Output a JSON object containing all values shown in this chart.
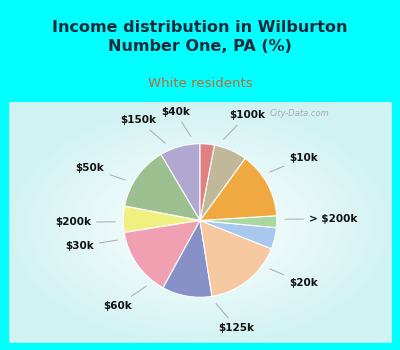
{
  "title": "Income distribution in Wilburton\nNumber One, PA (%)",
  "subtitle": "White residents",
  "bg_color": "#00FFFF",
  "chart_bg_color": "#d0ede0",
  "labels": [
    "$100k",
    "$10k",
    "> $200k",
    "$20k",
    "$125k",
    "$60k",
    "$30k",
    "$200k",
    "$50k",
    "$150k",
    "$40k"
  ],
  "sizes": [
    8.5,
    13.5,
    5.5,
    14.5,
    10.5,
    16.5,
    4.5,
    2.5,
    14.0,
    7.0,
    3.0
  ],
  "colors": [
    "#b0a8d0",
    "#9dc090",
    "#f0f080",
    "#f0a0b0",
    "#8890c8",
    "#f5c8a0",
    "#a8c8f0",
    "#a8d8a0",
    "#f0a840",
    "#c0b898",
    "#e08080"
  ],
  "startangle": 90,
  "title_fontsize": 11.5,
  "subtitle_fontsize": 9.5,
  "label_fontsize": 7.5,
  "title_color": "#1a2a3a",
  "subtitle_color": "#c06835",
  "label_color": "#111111",
  "watermark": "City-Data.com"
}
